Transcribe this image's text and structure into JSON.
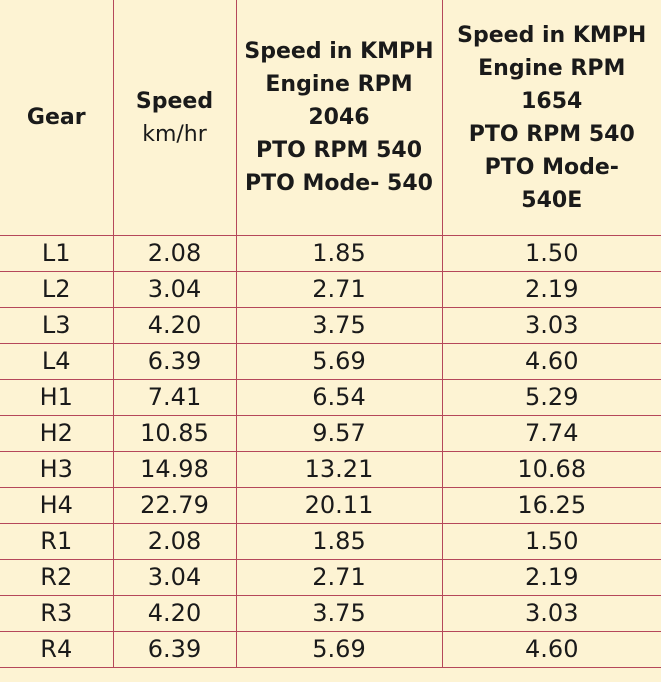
{
  "table": {
    "headers": [
      [
        "Gear"
      ],
      [
        "Speed",
        "km/hr"
      ],
      [
        "Speed in KMPH",
        "Engine RPM",
        "2046",
        "PTO RPM 540",
        "PTO Mode- 540"
      ],
      [
        "Speed in KMPH",
        "Engine RPM",
        "1654",
        "PTO RPM 540",
        "PTO Mode-",
        "540E"
      ]
    ],
    "rows": [
      [
        "L1",
        "2.08",
        "1.85",
        "1.50"
      ],
      [
        "L2",
        "3.04",
        "2.71",
        "2.19"
      ],
      [
        "L3",
        "4.20",
        "3.75",
        "3.03"
      ],
      [
        "L4",
        "6.39",
        "5.69",
        "4.60"
      ],
      [
        "H1",
        "7.41",
        "6.54",
        "5.29"
      ],
      [
        "H2",
        "10.85",
        "9.57",
        "7.74"
      ],
      [
        "H3",
        "14.98",
        "13.21",
        "10.68"
      ],
      [
        "H4",
        "22.79",
        "20.11",
        "16.25"
      ],
      [
        "R1",
        "2.08",
        "1.85",
        "1.50"
      ],
      [
        "R2",
        "3.04",
        "2.71",
        "2.19"
      ],
      [
        "R3",
        "4.20",
        "3.75",
        "3.03"
      ],
      [
        "R4",
        "6.39",
        "5.69",
        "4.60"
      ]
    ]
  },
  "colors": {
    "background": "#fdf3d3",
    "border": "#b5475a",
    "text": "#1a1a1a"
  }
}
